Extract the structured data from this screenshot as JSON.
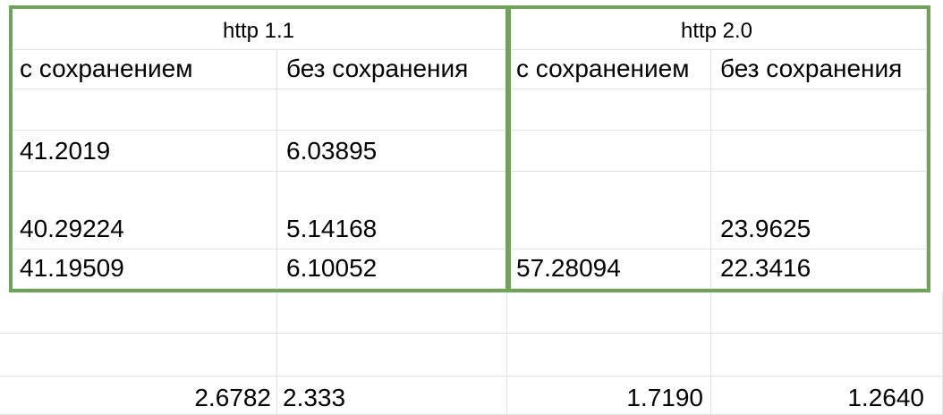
{
  "sheet": {
    "group_border_color": "#6fa35a",
    "gridline_color": "#e2e2e2",
    "groups": [
      {
        "title": "http 1.1"
      },
      {
        "title": "http 2.0"
      }
    ],
    "subheaders": [
      "с сохранением",
      "без сохранения",
      "с сохранением",
      "без сохранения"
    ],
    "rows": [
      [
        "",
        "",
        "",
        ""
      ],
      [
        "41.2019",
        "6.03895",
        "",
        ""
      ],
      [
        "40.29224",
        "5.14168",
        "",
        "23.9625"
      ],
      [
        "41.19509",
        "6.10052",
        "57.28094",
        "22.3416"
      ],
      [
        "",
        "",
        "",
        ""
      ],
      [
        "",
        "",
        "",
        ""
      ],
      [
        "2.6782",
        "2.333",
        "1.7190",
        "1.2640"
      ]
    ]
  }
}
